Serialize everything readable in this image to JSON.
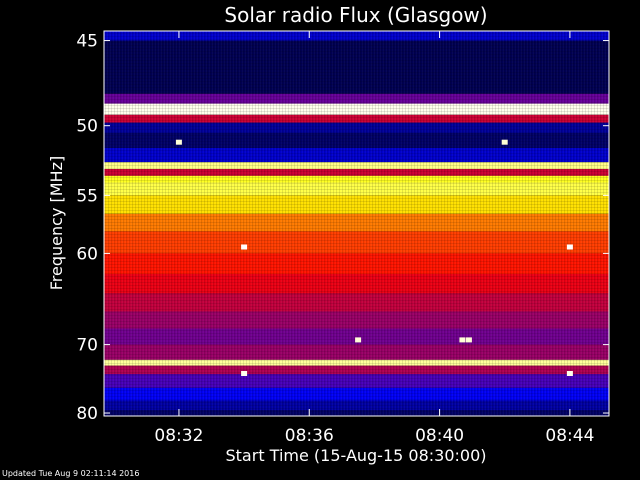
{
  "chart_data": {
    "type": "heatmap",
    "title": "Solar radio Flux (Glasgow)",
    "xlabel": "Start Time (15-Aug-15 08:30:00)",
    "ylabel": "Frequency [MHz]",
    "xlim_minutes_after_0830": [
      -0.3,
      15.2
    ],
    "ylim": [
      44.5,
      80.5
    ],
    "y_ticks": [
      45,
      50,
      55,
      60,
      70,
      80
    ],
    "y_tick_labels": [
      "45",
      "50",
      "55",
      "60",
      "70",
      "80"
    ],
    "x_ticks_minutes_after_0830": [
      2,
      6,
      10,
      14
    ],
    "x_tick_labels": [
      "08:32",
      "08:36",
      "08:40",
      "08:44"
    ],
    "frequency_bands": [
      {
        "f0": 44.5,
        "f1": 45.0,
        "intensity": 0.2
      },
      {
        "f0": 45.0,
        "f1": 48.0,
        "intensity": 0.08
      },
      {
        "f0": 48.0,
        "f1": 48.6,
        "intensity": 0.35
      },
      {
        "f0": 48.6,
        "f1": 49.3,
        "intensity": 0.98
      },
      {
        "f0": 49.3,
        "f1": 49.8,
        "intensity": 0.45
      },
      {
        "f0": 49.8,
        "f1": 50.5,
        "intensity": 0.15
      },
      {
        "f0": 50.5,
        "f1": 51.5,
        "intensity": 0.1
      },
      {
        "f0": 51.5,
        "f1": 52.5,
        "intensity": 0.2
      },
      {
        "f0": 52.5,
        "f1": 53.0,
        "intensity": 0.88
      },
      {
        "f0": 53.0,
        "f1": 53.5,
        "intensity": 0.45
      },
      {
        "f0": 53.5,
        "f1": 54.0,
        "intensity": 0.78
      },
      {
        "f0": 54.0,
        "f1": 55.0,
        "intensity": 0.82
      },
      {
        "f0": 55.0,
        "f1": 56.5,
        "intensity": 0.72
      },
      {
        "f0": 56.5,
        "f1": 58.0,
        "intensity": 0.62
      },
      {
        "f0": 58.0,
        "f1": 60.0,
        "intensity": 0.56
      },
      {
        "f0": 60.0,
        "f1": 62.0,
        "intensity": 0.52
      },
      {
        "f0": 62.0,
        "f1": 64.0,
        "intensity": 0.48
      },
      {
        "f0": 64.0,
        "f1": 66.0,
        "intensity": 0.44
      },
      {
        "f0": 66.0,
        "f1": 68.0,
        "intensity": 0.4
      },
      {
        "f0": 68.0,
        "f1": 70.0,
        "intensity": 0.36
      },
      {
        "f0": 70.0,
        "f1": 72.0,
        "intensity": 0.4
      },
      {
        "f0": 72.0,
        "f1": 72.8,
        "intensity": 0.9
      },
      {
        "f0": 72.8,
        "f1": 74.0,
        "intensity": 0.42
      },
      {
        "f0": 74.0,
        "f1": 76.0,
        "intensity": 0.32
      },
      {
        "f0": 76.0,
        "f1": 78.0,
        "intensity": 0.24
      },
      {
        "f0": 78.0,
        "f1": 79.5,
        "intensity": 0.16
      },
      {
        "f0": 79.5,
        "f1": 80.5,
        "intensity": 0.1
      }
    ],
    "hot_spots": [
      {
        "t": 4.0,
        "f": 59.4,
        "intensity": 1.0
      },
      {
        "t": 14.0,
        "f": 59.4,
        "intensity": 1.0
      },
      {
        "t": 2.0,
        "f": 51.1,
        "intensity": 0.9
      },
      {
        "t": 12.0,
        "f": 51.1,
        "intensity": 0.9
      },
      {
        "t": 4.0,
        "f": 73.9,
        "intensity": 0.95
      },
      {
        "t": 14.0,
        "f": 73.9,
        "intensity": 0.95
      },
      {
        "t": 7.5,
        "f": 69.4,
        "intensity": 0.9
      },
      {
        "t": 10.7,
        "f": 69.4,
        "intensity": 0.9
      },
      {
        "t": 10.9,
        "f": 69.4,
        "intensity": 0.9
      }
    ],
    "grid": false,
    "colormap": [
      "#000000",
      "#0000ff",
      "#ff0000",
      "#ffff00",
      "#ffffff"
    ]
  },
  "footer": {
    "updated_text": "Updated Tue Aug  9 02:11:14 2016"
  }
}
